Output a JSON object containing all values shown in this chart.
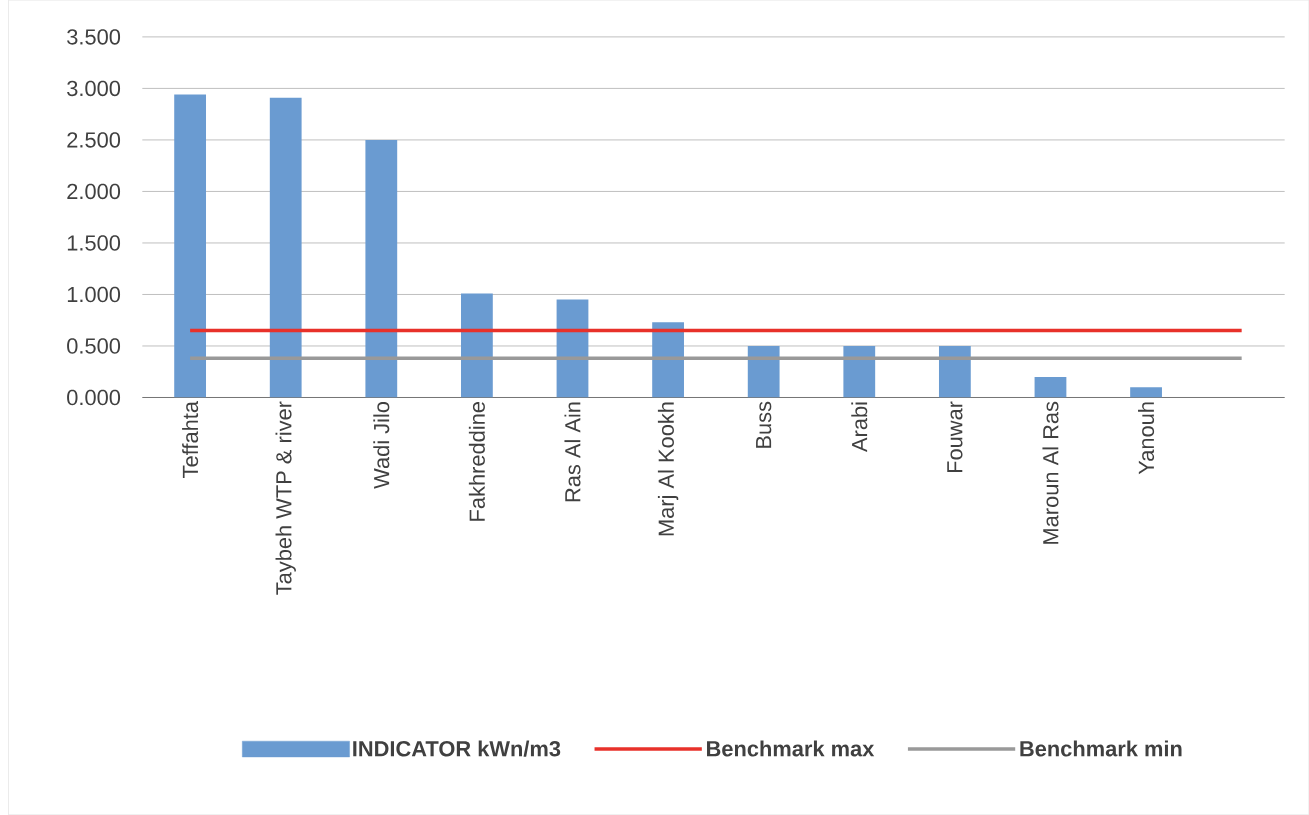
{
  "chart_data": {
    "type": "bar",
    "categories": [
      "Teffahta",
      "Taybeh WTP & river",
      "Wadi Jilo",
      "Fakhreddine",
      "Ras Al Ain",
      "Marj Al Kookh",
      "Buss",
      "Arabi",
      "Fouwar",
      "Maroun Al Ras",
      "Yanouh",
      null
    ],
    "series": [
      {
        "name": "INDICATOR kWn/m3",
        "color": "#6a9bd1",
        "values": [
          2.94,
          2.91,
          2.5,
          1.01,
          0.95,
          0.73,
          0.5,
          0.5,
          0.5,
          0.2,
          0.1,
          null
        ]
      },
      {
        "name": "Benchmark max",
        "type": "line",
        "color": "#e8312a",
        "values": [
          0.65,
          0.65,
          0.65,
          0.65,
          0.65,
          0.65,
          0.65,
          0.65,
          0.65,
          0.65,
          0.65,
          0.65
        ]
      },
      {
        "name": "Benchmark min",
        "type": "line",
        "color": "#999999",
        "values": [
          0.38,
          0.38,
          0.38,
          0.38,
          0.38,
          0.38,
          0.38,
          0.38,
          0.38,
          0.38,
          0.38,
          0.38
        ]
      }
    ],
    "ylim": [
      0,
      3.5
    ],
    "yticks": [
      {
        "value": 0,
        "label": "0.000"
      },
      {
        "value": 0.5,
        "label": "0.500"
      },
      {
        "value": 1,
        "label": "1.000"
      },
      {
        "value": 1.5,
        "label": "1.500"
      },
      {
        "value": 2,
        "label": "2.000"
      },
      {
        "value": 2.5,
        "label": "2.500"
      },
      {
        "value": 3,
        "label": "3.000"
      },
      {
        "value": 3.5,
        "label": "3.500"
      }
    ],
    "grid": "y",
    "legend": "bottom"
  }
}
